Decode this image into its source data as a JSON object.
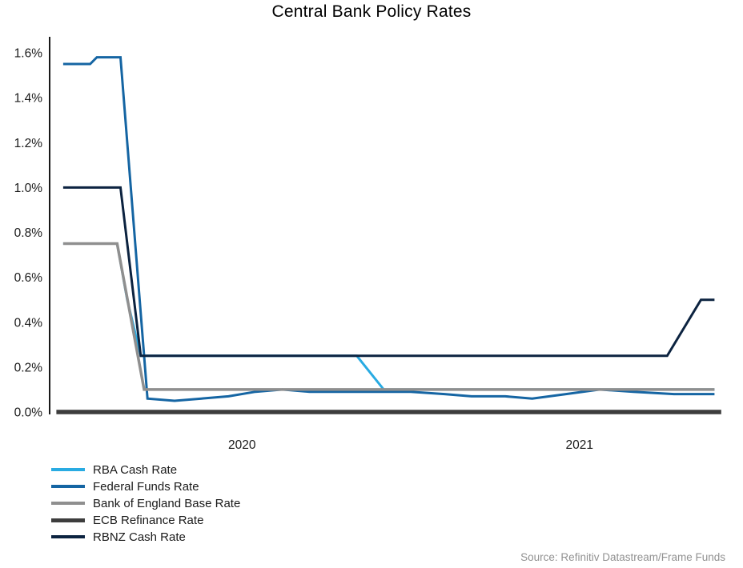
{
  "chart_data": {
    "type": "line",
    "title": "Central Bank Policy Rates",
    "source": "Source: Refinitiv Datastream/Frame Funds",
    "xlabel": "",
    "ylabel": "",
    "xlim": [
      2019.93,
      2021.93
    ],
    "ylim": [
      0,
      1.6
    ],
    "grid": false,
    "legend_position": "bottom-left",
    "axis_color": "#1a1a1a",
    "y_ticks": [
      {
        "value": 0.0,
        "label": "0.0%"
      },
      {
        "value": 0.2,
        "label": "0.2%"
      },
      {
        "value": 0.4,
        "label": "0.4%"
      },
      {
        "value": 0.6,
        "label": "0.6%"
      },
      {
        "value": 0.8,
        "label": "0.8%"
      },
      {
        "value": 1.0,
        "label": "1.0%"
      },
      {
        "value": 1.2,
        "label": "1.2%"
      },
      {
        "value": 1.4,
        "label": "1.4%"
      },
      {
        "value": 1.6,
        "label": "1.6%"
      }
    ],
    "x_ticks": [
      {
        "value": 2020.5,
        "label": "2020"
      },
      {
        "value": 2021.5,
        "label": "2021"
      }
    ],
    "series": [
      {
        "name": "RBA Cash Rate",
        "color": "#29ABE2",
        "width": 3,
        "points": [
          [
            2019.97,
            0.75
          ],
          [
            2020.13,
            0.75
          ],
          [
            2020.16,
            0.5
          ],
          [
            2020.2,
            0.25
          ],
          [
            2020.84,
            0.25
          ],
          [
            2020.92,
            0.1
          ],
          [
            2021.9,
            0.1
          ]
        ]
      },
      {
        "name": "Federal Funds Rate",
        "color": "#1565A3",
        "width": 3,
        "points": [
          [
            2019.97,
            1.55
          ],
          [
            2020.05,
            1.55
          ],
          [
            2020.07,
            1.58
          ],
          [
            2020.14,
            1.58
          ],
          [
            2020.22,
            0.06
          ],
          [
            2020.3,
            0.05
          ],
          [
            2020.38,
            0.06
          ],
          [
            2020.46,
            0.07
          ],
          [
            2020.54,
            0.09
          ],
          [
            2020.62,
            0.1
          ],
          [
            2020.7,
            0.09
          ],
          [
            2020.85,
            0.09
          ],
          [
            2021.0,
            0.09
          ],
          [
            2021.1,
            0.08
          ],
          [
            2021.18,
            0.07
          ],
          [
            2021.28,
            0.07
          ],
          [
            2021.36,
            0.06
          ],
          [
            2021.46,
            0.08
          ],
          [
            2021.56,
            0.1
          ],
          [
            2021.66,
            0.09
          ],
          [
            2021.78,
            0.08
          ],
          [
            2021.9,
            0.08
          ]
        ]
      },
      {
        "name": "Bank of England Base Rate",
        "color": "#8F8F8F",
        "width": 3.5,
        "points": [
          [
            2019.97,
            0.75
          ],
          [
            2020.13,
            0.75
          ],
          [
            2020.21,
            0.1
          ],
          [
            2021.9,
            0.1
          ]
        ]
      },
      {
        "name": "ECB Refinance Rate",
        "color": "#3D3D3D",
        "width": 5.5,
        "points": [
          [
            2019.95,
            0.0
          ],
          [
            2021.92,
            0.0
          ]
        ]
      },
      {
        "name": "RBNZ Cash Rate",
        "color": "#0C2340",
        "width": 3,
        "points": [
          [
            2019.97,
            1.0
          ],
          [
            2020.14,
            1.0
          ],
          [
            2020.2,
            0.25
          ],
          [
            2021.76,
            0.25
          ],
          [
            2021.86,
            0.5
          ],
          [
            2021.9,
            0.5
          ]
        ]
      }
    ]
  }
}
